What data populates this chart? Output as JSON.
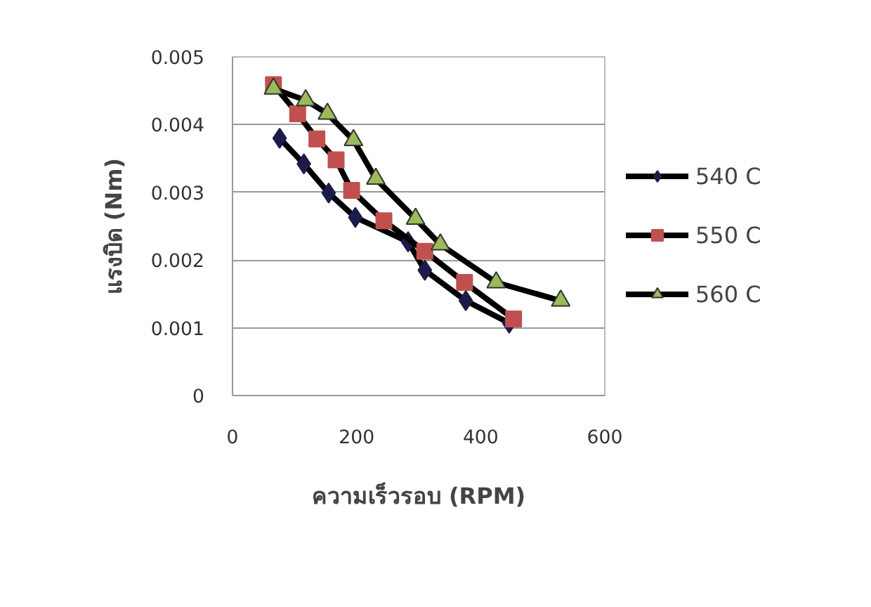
{
  "chart_data": {
    "type": "line",
    "xlabel": "ความเร็วรอบ (RPM)",
    "ylabel": "แรงบิด (Nm)",
    "xlim": [
      0,
      600
    ],
    "xticks": [
      0,
      200,
      400,
      600
    ],
    "ylim": [
      0,
      0.005
    ],
    "yticks": [
      0,
      0.001,
      0.002,
      0.003,
      0.004,
      0.005
    ],
    "grid": "y",
    "legend": "right",
    "series": [
      {
        "name": "540 C",
        "color": "#1c1c4a",
        "marker": "diamond",
        "x": [
          76,
          115,
          155,
          198,
          283,
          310,
          376,
          446
        ],
        "values": [
          0.0038,
          0.00342,
          0.00299,
          0.00263,
          0.00227,
          0.00185,
          0.0014,
          0.00107
        ]
      },
      {
        "name": "550 C",
        "color": "#c0504d",
        "marker": "square",
        "x": [
          66,
          105,
          136,
          167,
          192,
          244,
          310,
          374,
          453
        ],
        "values": [
          0.00459,
          0.00416,
          0.00379,
          0.00348,
          0.00303,
          0.00258,
          0.00213,
          0.00167,
          0.00113
        ]
      },
      {
        "name": "560 C",
        "color": "#9bbb59",
        "marker": "triangle",
        "x": [
          66,
          118,
          153,
          195,
          231,
          295,
          335,
          425,
          529
        ],
        "values": [
          0.00453,
          0.00436,
          0.00416,
          0.00377,
          0.0032,
          0.00261,
          0.00223,
          0.00167,
          0.0014
        ]
      }
    ]
  }
}
